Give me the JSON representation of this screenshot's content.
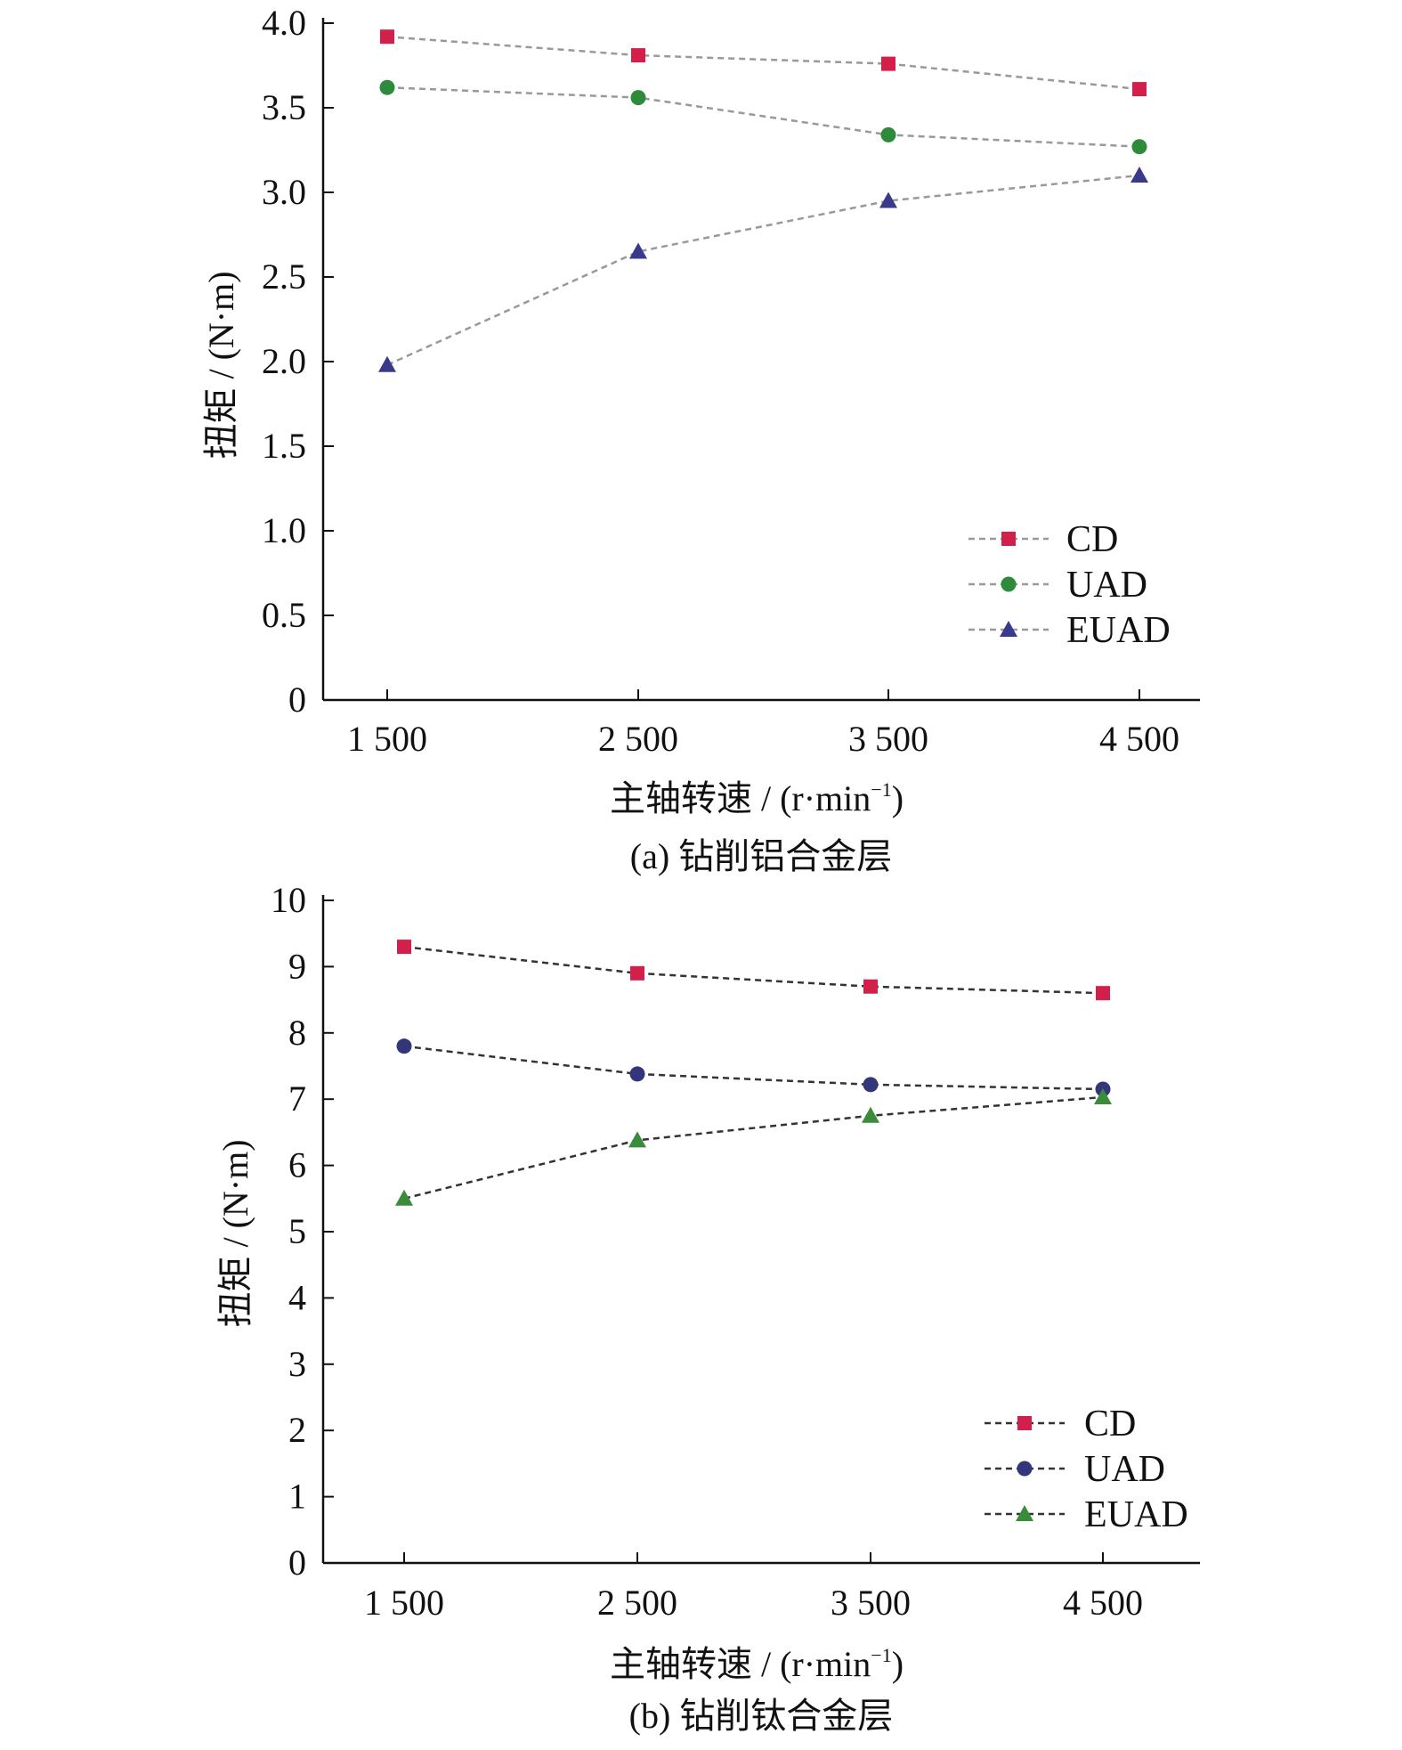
{
  "chart_data": [
    {
      "type": "line",
      "caption": "(a) 钻削铝合金层",
      "xlabel_main": "主轴转速 / (r·min",
      "xlabel_sup": "−1",
      "xlabel_end": ")",
      "ylabel": "扭矩 / (N·m)",
      "categories": [
        "1 500",
        "2 500",
        "3 500",
        "4 500"
      ],
      "x": [
        1500,
        2500,
        3500,
        4500
      ],
      "ylim": [
        0,
        4.0
      ],
      "yticks": [
        0,
        0.5,
        1.0,
        1.5,
        2.0,
        2.5,
        3.0,
        3.5,
        4.0
      ],
      "ytick_labels": [
        "0",
        "0.5",
        "1.0",
        "1.5",
        "2.0",
        "2.5",
        "3.0",
        "3.5",
        "4.0"
      ],
      "legend_position": "bottom-right",
      "series": [
        {
          "name": "CD",
          "marker": "square",
          "color": "#d3204a",
          "line_color": "#999999",
          "values": [
            3.92,
            3.81,
            3.76,
            3.61
          ]
        },
        {
          "name": "UAD",
          "marker": "circle",
          "color": "#2e8b3a",
          "line_color": "#999999",
          "values": [
            3.62,
            3.56,
            3.34,
            3.27
          ]
        },
        {
          "name": "EUAD",
          "marker": "triangle",
          "color": "#3a3a8c",
          "line_color": "#999999",
          "values": [
            1.98,
            2.65,
            2.95,
            3.1
          ]
        }
      ]
    },
    {
      "type": "line",
      "caption": "(b) 钻削钛合金层",
      "xlabel_main": "主轴转速 / (r·min",
      "xlabel_sup": "−1",
      "xlabel_end": ")",
      "ylabel": "扭矩 / (N·m)",
      "categories": [
        "1 500",
        "2 500",
        "3 500",
        "4 500"
      ],
      "x": [
        1500,
        2500,
        3500,
        4500
      ],
      "ylim": [
        0,
        10
      ],
      "yticks": [
        0,
        1,
        2,
        3,
        4,
        5,
        6,
        7,
        8,
        9,
        10
      ],
      "ytick_labels": [
        "0",
        "1",
        "2",
        "3",
        "4",
        "5",
        "6",
        "7",
        "8",
        "9",
        "10"
      ],
      "legend_position": "bottom-right",
      "series": [
        {
          "name": "CD",
          "marker": "square",
          "color": "#d3204a",
          "line_color": "#333333",
          "values": [
            9.3,
            8.9,
            8.7,
            8.6
          ]
        },
        {
          "name": "UAD",
          "marker": "circle",
          "color": "#33367a",
          "line_color": "#333333",
          "values": [
            7.8,
            7.38,
            7.22,
            7.15
          ]
        },
        {
          "name": "EUAD",
          "marker": "triangle",
          "color": "#3a8c3a",
          "line_color": "#333333",
          "values": [
            5.5,
            6.38,
            6.75,
            7.03
          ]
        }
      ]
    }
  ]
}
